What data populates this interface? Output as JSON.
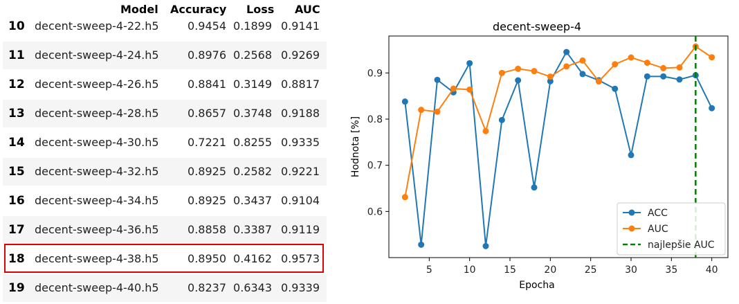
{
  "table": {
    "headers": [
      "Model",
      "Accuracy",
      "Loss",
      "AUC"
    ],
    "rows": [
      {
        "index": "10",
        "model": "decent-sweep-4-22.h5",
        "accuracy": "0.9454",
        "loss": "0.1899",
        "auc": "0.9141"
      },
      {
        "index": "11",
        "model": "decent-sweep-4-24.h5",
        "accuracy": "0.8976",
        "loss": "0.2568",
        "auc": "0.9269"
      },
      {
        "index": "12",
        "model": "decent-sweep-4-26.h5",
        "accuracy": "0.8841",
        "loss": "0.3149",
        "auc": "0.8817"
      },
      {
        "index": "13",
        "model": "decent-sweep-4-28.h5",
        "accuracy": "0.8657",
        "loss": "0.3748",
        "auc": "0.9188"
      },
      {
        "index": "14",
        "model": "decent-sweep-4-30.h5",
        "accuracy": "0.7221",
        "loss": "0.8255",
        "auc": "0.9335"
      },
      {
        "index": "15",
        "model": "decent-sweep-4-32.h5",
        "accuracy": "0.8925",
        "loss": "0.2582",
        "auc": "0.9221"
      },
      {
        "index": "16",
        "model": "decent-sweep-4-34.h5",
        "accuracy": "0.8925",
        "loss": "0.3437",
        "auc": "0.9104"
      },
      {
        "index": "17",
        "model": "decent-sweep-4-36.h5",
        "accuracy": "0.8858",
        "loss": "0.3387",
        "auc": "0.9119"
      },
      {
        "index": "18",
        "model": "decent-sweep-4-38.h5",
        "accuracy": "0.8950",
        "loss": "0.4162",
        "auc": "0.9573"
      },
      {
        "index": "19",
        "model": "decent-sweep-4-40.h5",
        "accuracy": "0.8237",
        "loss": "0.6343",
        "auc": "0.9339"
      }
    ],
    "highlighted_index": "18",
    "highlight_color": "#e00000"
  },
  "chart_data": {
    "type": "line",
    "title": "decent-sweep-4",
    "xlabel": "Epocha",
    "ylabel": "Hodnota [%]",
    "xlim": [
      0,
      42
    ],
    "ylim": [
      0.5,
      0.98
    ],
    "xticks": [
      "5",
      "10",
      "15",
      "20",
      "25",
      "30",
      "35",
      "40"
    ],
    "yticks": [
      "0.6",
      "0.7",
      "0.8",
      "0.9"
    ],
    "x": [
      2,
      4,
      6,
      8,
      10,
      12,
      14,
      16,
      18,
      20,
      22,
      24,
      26,
      28,
      30,
      32,
      34,
      36,
      38,
      40
    ],
    "series": [
      {
        "name": "ACC",
        "color": "#1f77b4",
        "values": [
          0.838,
          0.528,
          0.885,
          0.858,
          0.921,
          0.525,
          0.798,
          0.884,
          0.652,
          0.882,
          0.9454,
          0.8976,
          0.8841,
          0.8657,
          0.7221,
          0.8925,
          0.8925,
          0.8858,
          0.895,
          0.8237
        ]
      },
      {
        "name": "AUC",
        "color": "#ff7f0e",
        "values": [
          0.631,
          0.82,
          0.816,
          0.866,
          0.864,
          0.774,
          0.9,
          0.909,
          0.904,
          0.892,
          0.9141,
          0.9269,
          0.8817,
          0.9188,
          0.9335,
          0.9221,
          0.9104,
          0.9119,
          0.9573,
          0.9339
        ]
      }
    ],
    "vline": {
      "x": 38,
      "name": "najlepšie AUC",
      "color": "#008000",
      "style": "dashed"
    },
    "legend_position": "lower-right",
    "grid": false
  }
}
